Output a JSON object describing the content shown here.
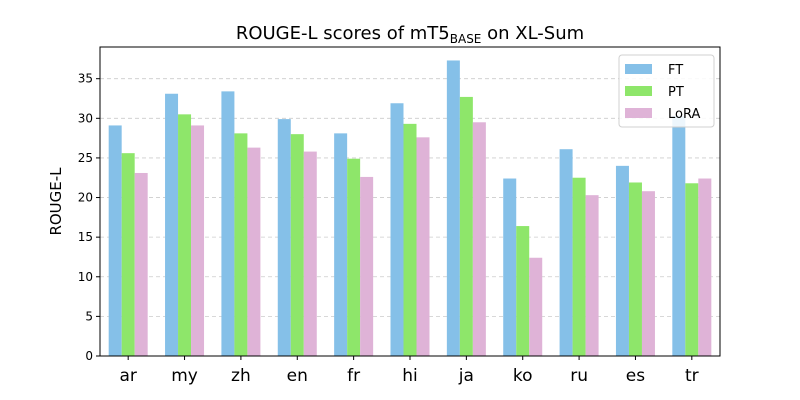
{
  "chart_data": {
    "type": "bar",
    "title": "ROUGE-L scores of mT5",
    "title_subscript": "BASE",
    "title_suffix": " on XL-Sum",
    "xlabel": "",
    "ylabel": "ROUGE-L",
    "ylim": [
      0,
      39
    ],
    "yticks": [
      0,
      5,
      10,
      15,
      20,
      25,
      30,
      35
    ],
    "grid": "y-dashed",
    "legend_position": "top-right",
    "categories": [
      "ar",
      "my",
      "zh",
      "en",
      "fr",
      "hi",
      "ja",
      "ko",
      "ru",
      "es",
      "tr"
    ],
    "series": [
      {
        "name": "FT",
        "color": "#85c0e8",
        "values": [
          29.1,
          33.1,
          33.4,
          29.9,
          28.1,
          31.9,
          37.3,
          22.4,
          26.1,
          24.0,
          30.3
        ]
      },
      {
        "name": "PT",
        "color": "#8ee66a",
        "values": [
          25.6,
          30.5,
          28.1,
          28.0,
          24.9,
          29.3,
          32.7,
          16.4,
          22.5,
          21.9,
          21.8
        ]
      },
      {
        "name": "LoRA",
        "color": "#dfb3d7",
        "values": [
          23.1,
          29.1,
          26.3,
          25.8,
          22.6,
          27.6,
          29.5,
          12.4,
          20.3,
          20.8,
          22.4
        ]
      }
    ]
  }
}
